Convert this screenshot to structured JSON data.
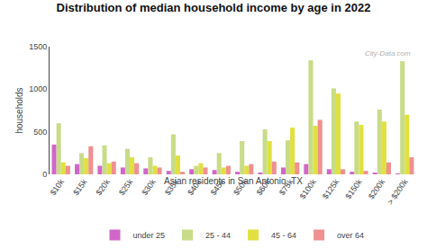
{
  "chart_data": {
    "type": "bar",
    "title": "Distribution of median household income by age in 2022",
    "subtitle": "Asian residents in San Antonio, TX",
    "ylabel": "households",
    "annotations": [
      "City-Data.com"
    ],
    "categories": [
      "$10k",
      "$15k",
      "$20k",
      "$25k",
      "$30k",
      "$35k",
      "$40k",
      "$45k",
      "$50k",
      "$60k",
      "$75k",
      "$100k",
      "$125k",
      "$150k",
      "$200k",
      "> $200k"
    ],
    "series": [
      {
        "name": "under 25",
        "color": "#d066c8",
        "values": [
          350,
          120,
          100,
          80,
          70,
          40,
          60,
          50,
          30,
          20,
          80,
          120,
          60,
          30,
          20,
          10
        ]
      },
      {
        "name": "25 - 44",
        "color": "#c8dc88",
        "values": [
          600,
          250,
          340,
          300,
          200,
          470,
          100,
          250,
          390,
          530,
          400,
          1340,
          1010,
          620,
          760,
          1330
        ]
      },
      {
        "name": "45 - 64",
        "color": "#e0e040",
        "values": [
          140,
          190,
          130,
          200,
          100,
          220,
          130,
          80,
          100,
          390,
          550,
          570,
          950,
          580,
          620,
          700
        ]
      },
      {
        "name": "over 64",
        "color": "#f09090",
        "values": [
          100,
          330,
          150,
          130,
          80,
          30,
          80,
          100,
          120,
          150,
          140,
          640,
          60,
          40,
          140,
          200
        ]
      }
    ],
    "ylim": [
      0,
      1500
    ],
    "yticks": [
      0,
      500,
      1000,
      1500
    ],
    "grid": false,
    "legend": "bottom"
  }
}
